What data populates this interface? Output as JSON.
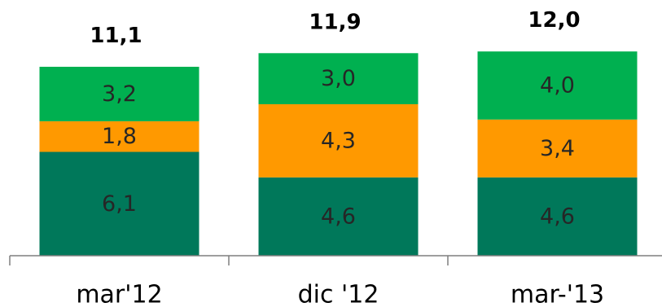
{
  "chart_data": {
    "type": "bar",
    "stacked": true,
    "categories": [
      "mar'12",
      "dic '12",
      "mar-'13"
    ],
    "series": [
      {
        "values": [
          6.1,
          4.6,
          4.6
        ],
        "labels": [
          "6,1",
          "4,6",
          "4,6"
        ],
        "color": "#00785a"
      },
      {
        "values": [
          1.8,
          4.3,
          3.4
        ],
        "labels": [
          "1,8",
          "4,3",
          "3,4"
        ],
        "color": "#ff9900"
      },
      {
        "values": [
          3.2,
          3.0,
          4.0
        ],
        "labels": [
          "3,2",
          "3,0",
          "4,0"
        ],
        "color": "#00b050"
      }
    ],
    "totals": [
      11.1,
      11.9,
      12.0
    ],
    "total_labels": [
      "11,1",
      "11,9",
      "12,0"
    ],
    "title": "",
    "xlabel": "",
    "ylabel": "",
    "ylim": [
      0,
      13
    ],
    "grid": false,
    "legend": "none"
  }
}
